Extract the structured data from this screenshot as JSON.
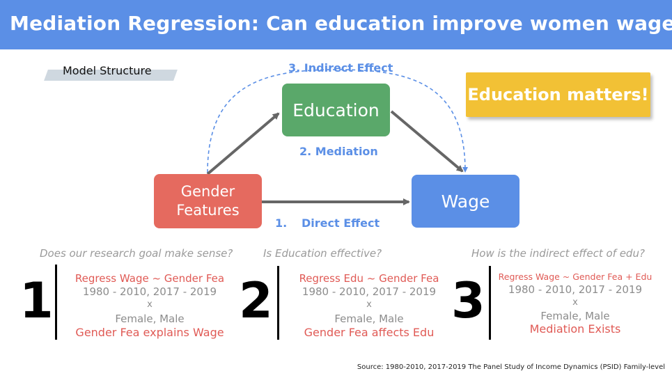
{
  "header": {
    "title": "Mediation Regression: Can education improve women wage?"
  },
  "model_structure": "Model  Structure",
  "nodes": {
    "education": "Education",
    "gender_line1": "Gender",
    "gender_line2": "Features",
    "wage": "Wage"
  },
  "edges": {
    "indirect": "3. Indirect Effect",
    "mediation": "2. Mediation",
    "direct_num": "1.",
    "direct": "Direct Effect"
  },
  "callout": "Education matters!",
  "steps": [
    {
      "number": "1",
      "question": "Does our research goal make sense?",
      "regression": "Regress Wage ~ Gender Fea",
      "years": "1980 - 2010, 2017 - 2019",
      "x": "x",
      "groups": "Female, Male",
      "conclusion": "Gender Fea explains Wage"
    },
    {
      "number": "2",
      "question": "Is Education effective?",
      "regression": "Regress Edu ~ Gender Fea",
      "years": "1980 - 2010, 2017 - 2019",
      "x": "x",
      "groups": "Female, Male",
      "conclusion": "Gender Fea affects Edu"
    },
    {
      "number": "3",
      "question": "How is the indirect effect of edu?",
      "regression": "Regress Wage ~ Gender Fea + Edu",
      "years": "1980 - 2010, 2017 - 2019",
      "x": "x",
      "groups": "Female, Male",
      "conclusion": "Mediation Exists"
    }
  ],
  "source": "Source: 1980-2010,  2017-2019 The Panel Study of Income Dynamics (PSID) Family-level",
  "colors": {
    "header": "#5b8fe6",
    "education": "#5aa86a",
    "gender": "#e56a5f",
    "wage": "#5b8fe6",
    "callout": "#f2c135",
    "accent_red": "#e05a55"
  }
}
